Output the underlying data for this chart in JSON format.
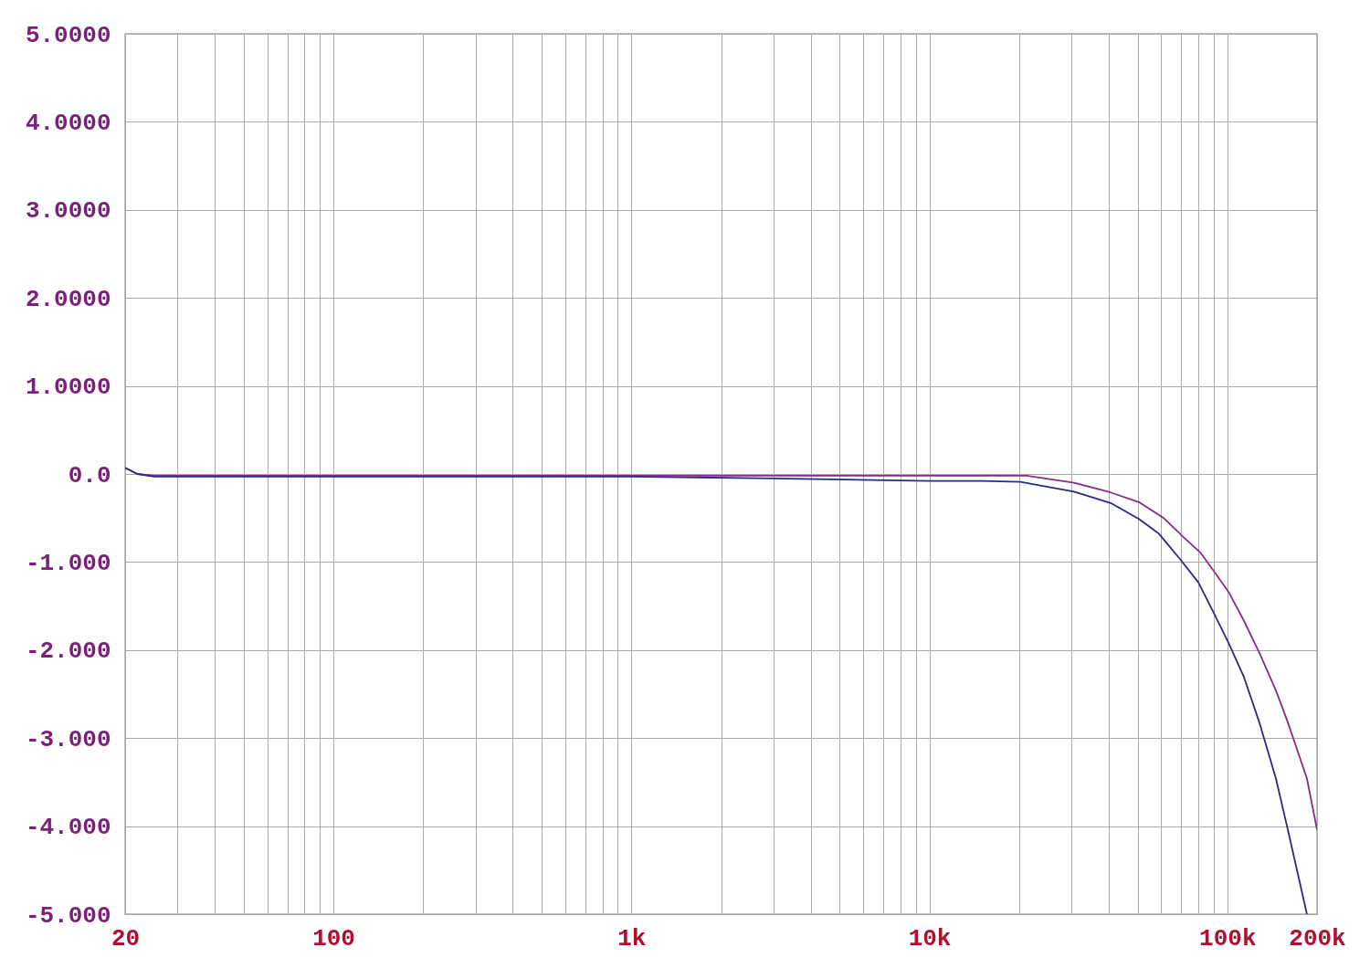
{
  "chart_data": {
    "type": "line",
    "log": "x",
    "grid": true,
    "legend": false,
    "marker": "none",
    "line_style": "solid",
    "xlim": [
      20,
      200000
    ],
    "ylim": [
      -5,
      5
    ],
    "xticks": [
      {
        "value": 20,
        "label": "20"
      },
      {
        "value": 30,
        "label": null
      },
      {
        "value": 40,
        "label": null
      },
      {
        "value": 50,
        "label": null
      },
      {
        "value": 60,
        "label": null
      },
      {
        "value": 70,
        "label": null
      },
      {
        "value": 80,
        "label": null
      },
      {
        "value": 90,
        "label": null
      },
      {
        "value": 100,
        "label": "100"
      },
      {
        "value": 200,
        "label": null
      },
      {
        "value": 300,
        "label": null
      },
      {
        "value": 400,
        "label": null
      },
      {
        "value": 500,
        "label": null
      },
      {
        "value": 600,
        "label": null
      },
      {
        "value": 700,
        "label": null
      },
      {
        "value": 800,
        "label": null
      },
      {
        "value": 900,
        "label": null
      },
      {
        "value": 1000,
        "label": "1k"
      },
      {
        "value": 2000,
        "label": null
      },
      {
        "value": 3000,
        "label": null
      },
      {
        "value": 4000,
        "label": null
      },
      {
        "value": 5000,
        "label": null
      },
      {
        "value": 6000,
        "label": null
      },
      {
        "value": 7000,
        "label": null
      },
      {
        "value": 8000,
        "label": null
      },
      {
        "value": 9000,
        "label": null
      },
      {
        "value": 10000,
        "label": "10k"
      },
      {
        "value": 20000,
        "label": null
      },
      {
        "value": 30000,
        "label": null
      },
      {
        "value": 40000,
        "label": null
      },
      {
        "value": 50000,
        "label": null
      },
      {
        "value": 60000,
        "label": null
      },
      {
        "value": 70000,
        "label": null
      },
      {
        "value": 80000,
        "label": null
      },
      {
        "value": 90000,
        "label": null
      },
      {
        "value": 100000,
        "label": "100k"
      },
      {
        "value": 200000,
        "label": "200k"
      }
    ],
    "yticks": [
      {
        "value": 5,
        "label": "5.0000"
      },
      {
        "value": 4,
        "label": "4.0000"
      },
      {
        "value": 3,
        "label": "3.0000"
      },
      {
        "value": 2,
        "label": "2.0000"
      },
      {
        "value": 1,
        "label": "1.0000"
      },
      {
        "value": 0,
        "label": "0.0"
      },
      {
        "value": -1,
        "label": "-1.000"
      },
      {
        "value": -2,
        "label": "-2.000"
      },
      {
        "value": -3,
        "label": "-3.000"
      },
      {
        "value": -4,
        "label": "-4.000"
      },
      {
        "value": -5,
        "label": "-5.000"
      }
    ],
    "series": [
      {
        "color": "#8b2a8b",
        "x": [
          20,
          22,
          25,
          100,
          1000,
          10000,
          21200,
          30600,
          40600,
          50500,
          61100,
          71900,
          81100,
          89500,
          101000,
          113800,
          128000,
          145600,
          159600,
          185000,
          200000
        ],
        "values": [
          0.07,
          0.0,
          -0.02,
          -0.02,
          -0.02,
          -0.02,
          -0.02,
          -0.1,
          -0.21,
          -0.32,
          -0.5,
          -0.73,
          -0.89,
          -1.09,
          -1.34,
          -1.67,
          -2.03,
          -2.46,
          -2.82,
          -3.46,
          -4.04
        ]
      },
      {
        "color": "#2a2a8a",
        "x": [
          20,
          22,
          25,
          100,
          1000,
          3000,
          10000,
          15000,
          20200,
          30600,
          40600,
          50500,
          59000,
          69900,
          79900,
          89500,
          101000,
          113800,
          128000,
          145600,
          159600,
          185000
        ],
        "values": [
          0.07,
          0.0,
          -0.03,
          -0.03,
          -0.03,
          -0.05,
          -0.08,
          -0.08,
          -0.09,
          -0.2,
          -0.33,
          -0.51,
          -0.68,
          -0.98,
          -1.23,
          -1.56,
          -1.92,
          -2.31,
          -2.82,
          -3.46,
          -4.04,
          -5.0
        ]
      }
    ]
  }
}
